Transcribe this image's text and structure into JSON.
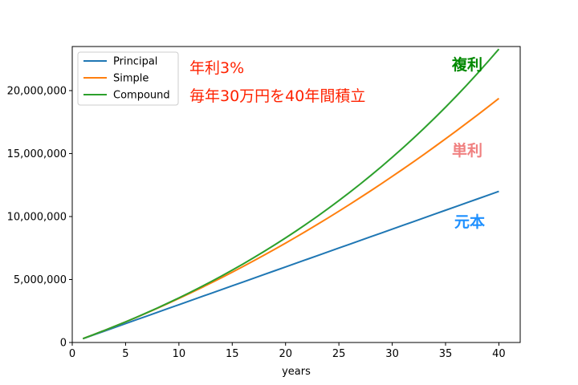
{
  "chart_data": {
    "type": "line",
    "xlabel": "years",
    "ylabel": "",
    "xlim": [
      0,
      42
    ],
    "ylim": [
      0,
      23500000
    ],
    "x_ticks": [
      0,
      5,
      10,
      15,
      20,
      25,
      30,
      35,
      40
    ],
    "y_ticks": [
      0,
      5000000,
      10000000,
      15000000,
      20000000
    ],
    "x_tick_labels": [
      "0",
      "5",
      "10",
      "15",
      "20",
      "25",
      "30",
      "35",
      "40"
    ],
    "y_tick_labels": [
      "0",
      "5,000,000",
      "10,000,000",
      "15,000,000",
      "20,000,000"
    ],
    "grid": false,
    "legend_position": "top-left",
    "series": [
      {
        "name": "Principal",
        "color": "#1f77b4",
        "model": "principal",
        "annual": 300000,
        "rate": 0.03
      },
      {
        "name": "Simple",
        "color": "#ff7f0e",
        "model": "simple",
        "annual": 300000,
        "rate": 0.03
      },
      {
        "name": "Compound",
        "color": "#2ca02c",
        "model": "compound",
        "annual": 300000,
        "rate": 0.03
      }
    ],
    "annotations": {
      "title_line1": "年利3%",
      "title_line2": "毎年30万円を40年間積立",
      "title_color": "#ff2200",
      "compound_label": "複利",
      "compound_color": "#008800",
      "simple_label": "単利",
      "simple_color": "#f08080",
      "principal_label": "元本",
      "principal_color": "#1e90ff"
    }
  }
}
